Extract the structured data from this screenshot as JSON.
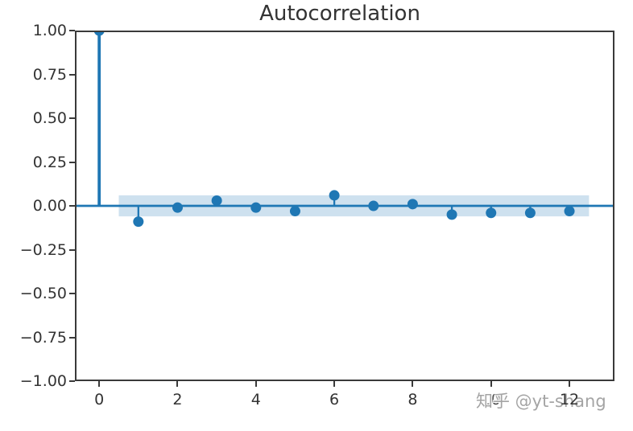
{
  "watermark": {
    "text": "知乎 @yt-shang"
  },
  "chart_data": {
    "type": "stem",
    "title": "Autocorrelation",
    "xlabel": "",
    "ylabel": "",
    "x": [
      0,
      1,
      2,
      3,
      4,
      5,
      6,
      7,
      8,
      9,
      10,
      11,
      12
    ],
    "values": [
      1.0,
      -0.09,
      -0.01,
      0.03,
      -0.01,
      -0.03,
      0.06,
      0.0,
      0.01,
      -0.05,
      -0.04,
      -0.04,
      -0.03
    ],
    "confidence_band": {
      "lo": -0.06,
      "hi": 0.06,
      "x_start": 0.5,
      "x_end": 12.5
    },
    "xlim": [
      -0.62,
      13.15
    ],
    "ylim": [
      -1.0,
      1.0
    ],
    "xticks": [
      0,
      2,
      4,
      6,
      8,
      10,
      12
    ],
    "xtick_labels": [
      "0",
      "2",
      "4",
      "6",
      "8",
      "10",
      "12"
    ],
    "yticks": [
      1.0,
      0.75,
      0.5,
      0.25,
      0.0,
      -0.25,
      -0.5,
      -0.75,
      -1.0
    ],
    "ytick_labels": [
      "1.00",
      "0.75",
      "0.50",
      "0.25",
      "0.00",
      "−0.25",
      "−0.50",
      "−0.75",
      "−1.00"
    ],
    "grid": false,
    "legend": null,
    "colors": {
      "stem": "#1f77b4",
      "band_alpha": 0.22,
      "axis": "#3a3a3a",
      "text": "#333333",
      "watermark": "#a4a4a4",
      "background": "#ffffff"
    }
  }
}
